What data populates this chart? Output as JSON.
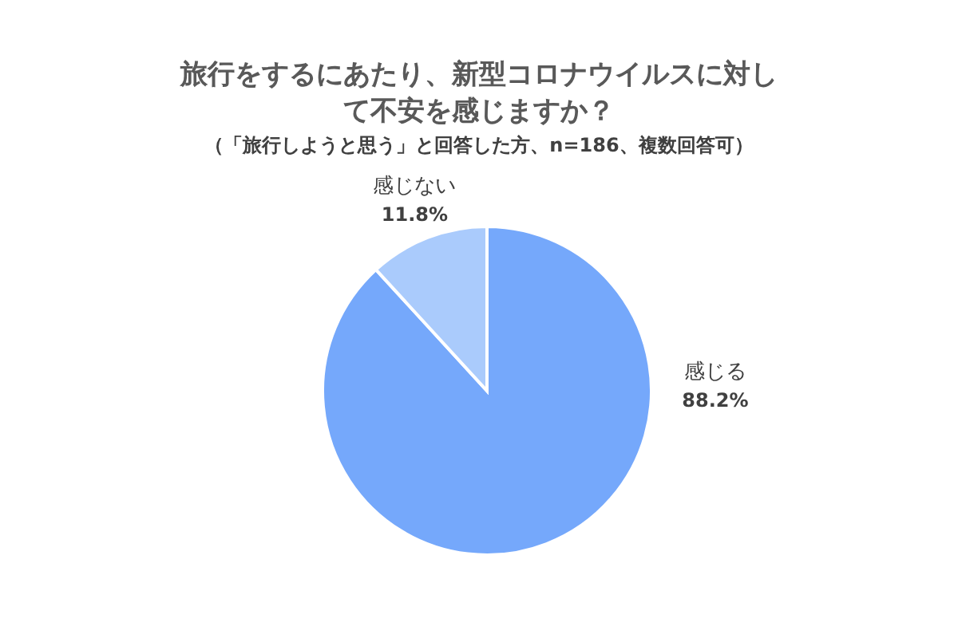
{
  "chart_data": {
    "type": "pie",
    "title": "旅行をするにあたり、新型コロナウイルスに対して不安を感じますか？",
    "subtitle": "（「旅行しようと思う」と回答した方、n=186、複数回答可）",
    "categories": [
      "感じる",
      "感じない"
    ],
    "values": [
      88.2,
      11.8
    ],
    "colors": [
      "#75a8fb",
      "#aacbfc"
    ],
    "value_labels": [
      "88.2%",
      "11.8%"
    ],
    "legend": false
  }
}
